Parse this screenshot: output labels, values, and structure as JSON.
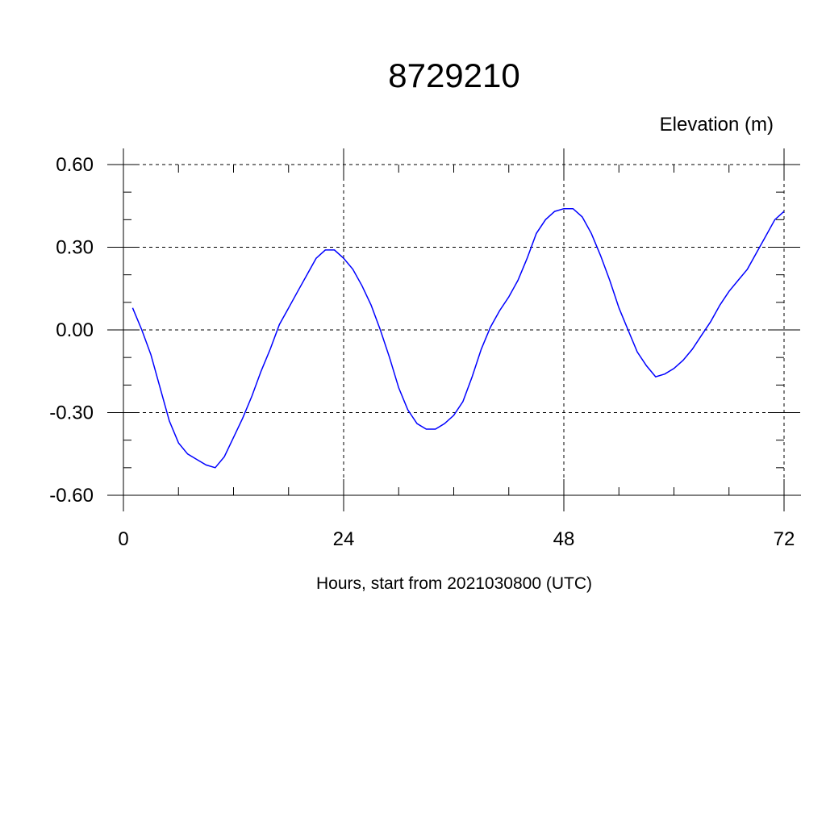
{
  "chart_data": {
    "type": "line",
    "title": "8729210",
    "ylabel": "Elevation (m)",
    "xlabel": "Hours, start from 2021030800 (UTC)",
    "xlim": [
      0,
      72
    ],
    "ylim": [
      -0.6,
      0.6
    ],
    "x_ticks": [
      0,
      24,
      48,
      72
    ],
    "x_tick_labels": [
      "0",
      "24",
      "48",
      "72"
    ],
    "y_ticks": [
      -0.6,
      -0.3,
      0.0,
      0.3,
      0.6
    ],
    "y_tick_labels": [
      "-0.60",
      "-0.30",
      "0.00",
      "0.30",
      "0.60"
    ],
    "grid": true,
    "series": [
      {
        "color": "#0000ff",
        "x": [
          1,
          2,
          3,
          4,
          5,
          6,
          7,
          8,
          9,
          10,
          11,
          12,
          13,
          14,
          15,
          16,
          17,
          18,
          19,
          20,
          21,
          22,
          23,
          24,
          25,
          26,
          27,
          28,
          29,
          30,
          31,
          32,
          33,
          34,
          35,
          36,
          37,
          38,
          39,
          40,
          41,
          42,
          43,
          44,
          45,
          46,
          47,
          48,
          49,
          50,
          51,
          52,
          53,
          54,
          55,
          56,
          57,
          58,
          59,
          60,
          61,
          62,
          63,
          64,
          65,
          66,
          67,
          68,
          69,
          70,
          71,
          72
        ],
        "y": [
          0.08,
          0.0,
          -0.09,
          -0.21,
          -0.33,
          -0.41,
          -0.45,
          -0.47,
          -0.49,
          -0.5,
          -0.46,
          -0.39,
          -0.32,
          -0.24,
          -0.15,
          -0.07,
          0.02,
          0.08,
          0.14,
          0.2,
          0.26,
          0.29,
          0.29,
          0.26,
          0.22,
          0.16,
          0.09,
          0.0,
          -0.1,
          -0.21,
          -0.29,
          -0.34,
          -0.36,
          -0.36,
          -0.34,
          -0.31,
          -0.26,
          -0.17,
          -0.07,
          0.01,
          0.07,
          0.12,
          0.18,
          0.26,
          0.35,
          0.4,
          0.43,
          0.44,
          0.44,
          0.41,
          0.35,
          0.27,
          0.18,
          0.08,
          0.0,
          -0.08,
          -0.13,
          -0.17,
          -0.16,
          -0.14,
          -0.11,
          -0.07,
          -0.02,
          0.03,
          0.09,
          0.14,
          0.18,
          0.22,
          0.28,
          0.34,
          0.4,
          0.43
        ]
      }
    ]
  }
}
